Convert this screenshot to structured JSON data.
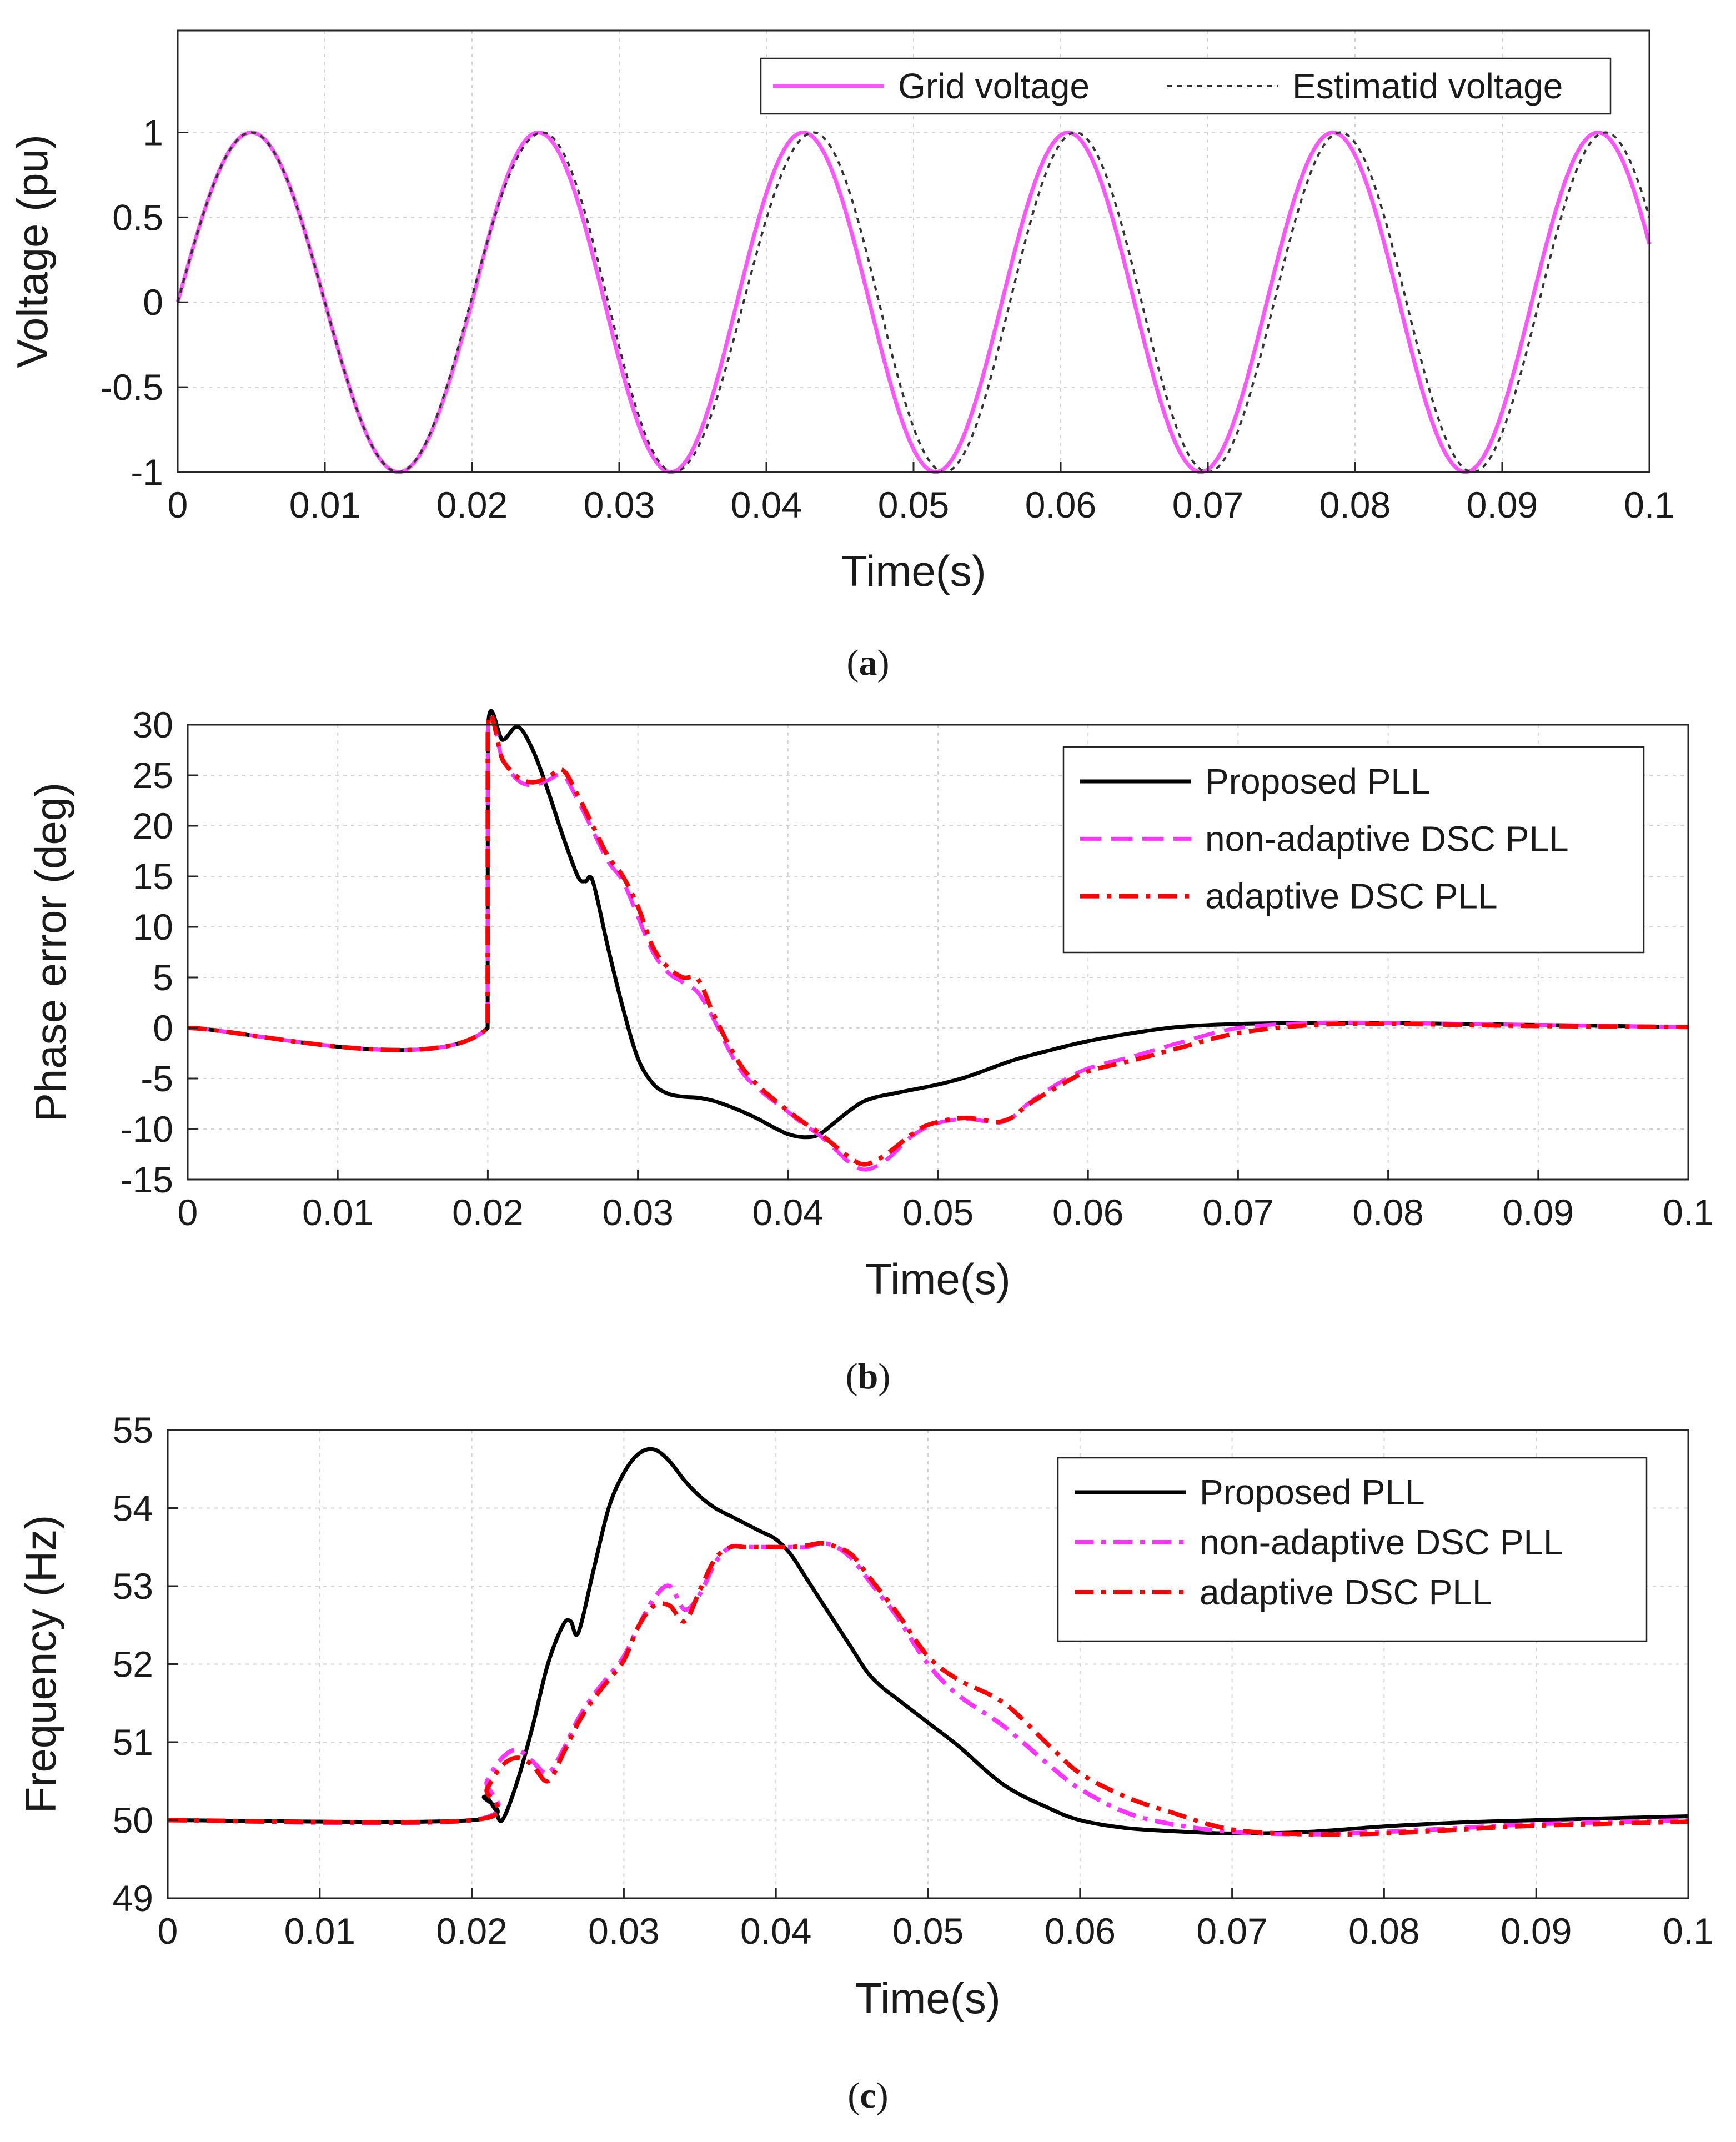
{
  "chart_data": [
    {
      "id": "a",
      "type": "line",
      "caption": "a",
      "xlabel": "Time(s)",
      "ylabel": "Voltage (pu)",
      "xlim": [
        0,
        0.1
      ],
      "ylim": [
        -1,
        1.6
      ],
      "xticks": [
        0,
        0.01,
        0.02,
        0.03,
        0.04,
        0.05,
        0.06,
        0.07,
        0.08,
        0.09,
        0.1
      ],
      "xtick_labels": [
        "0",
        "0.01",
        "0.02",
        "0.03",
        "0.04",
        "0.05",
        "0.06",
        "0.07",
        "0.08",
        "0.09",
        "0.1"
      ],
      "yticks": [
        -1,
        -0.5,
        0,
        0.5,
        1
      ],
      "ytick_labels": [
        "-1",
        "-0.5",
        "0",
        "0.5",
        "1"
      ],
      "grid": true,
      "legend": {
        "position": "top-right",
        "layout": "horizontal"
      },
      "series": [
        {
          "name": "Grid voltage",
          "color": "#ff55ff",
          "dash": "solid",
          "style": "sine",
          "segments": [
            {
              "t0": 0.0,
              "t1": 0.02,
              "period": 0.02,
              "phase_start": 0.0
            },
            {
              "t0": 0.02,
              "t1": 0.1,
              "period": 0.018,
              "phase_start": 0.0
            }
          ]
        },
        {
          "name": "Estimatid voltage",
          "color": "#333333",
          "dash": "dotted",
          "style": "sine",
          "x": [
            0,
            0.005,
            0.015,
            0.0248,
            0.0337,
            0.0432,
            0.0521,
            0.061,
            0.07,
            0.079,
            0.088,
            0.097,
            0.1
          ],
          "y": [
            0,
            1,
            -1,
            1,
            -1,
            1,
            -1,
            1,
            -1,
            1,
            -1,
            1,
            0.59
          ]
        }
      ]
    },
    {
      "id": "b",
      "type": "line",
      "caption": "b",
      "xlabel": "Time(s)",
      "ylabel": "Phase error (deg)",
      "xlim": [
        0,
        0.1
      ],
      "ylim": [
        -15,
        30
      ],
      "xticks": [
        0,
        0.01,
        0.02,
        0.03,
        0.04,
        0.05,
        0.06,
        0.07,
        0.08,
        0.09,
        0.1
      ],
      "xtick_labels": [
        "0",
        "0.01",
        "0.02",
        "0.03",
        "0.04",
        "0.05",
        "0.06",
        "0.07",
        "0.08",
        "0.09",
        "0.1"
      ],
      "yticks": [
        -15,
        -10,
        -5,
        0,
        5,
        10,
        15,
        20,
        25,
        30
      ],
      "ytick_labels": [
        "-15",
        "-10",
        "-5",
        "0",
        "5",
        "10",
        "15",
        "20",
        "25",
        "30"
      ],
      "grid": true,
      "legend": {
        "position": "top-right",
        "layout": "vertical"
      },
      "series": [
        {
          "name": "Proposed PLL",
          "color": "#000000",
          "dash": "solid",
          "x": [
            0,
            0.01999,
            0.02,
            0.021,
            0.022,
            0.023,
            0.024,
            0.025,
            0.026,
            0.0265,
            0.027,
            0.028,
            0.029,
            0.03,
            0.031,
            0.032,
            0.033,
            0.034,
            0.035,
            0.036,
            0.037,
            0.038,
            0.039,
            0.04,
            0.041,
            0.042,
            0.043,
            0.044,
            0.045,
            0.046,
            0.047,
            0.048,
            0.05,
            0.052,
            0.055,
            0.058,
            0.06,
            0.063,
            0.066,
            0.07,
            0.075,
            0.08,
            0.085,
            0.09,
            0.1
          ],
          "y": [
            0,
            0,
            29.5,
            28.5,
            29.8,
            27.5,
            23.5,
            19,
            15,
            14.5,
            14.5,
            8,
            2,
            -3,
            -5.5,
            -6.5,
            -6.8,
            -6.9,
            -7.2,
            -7.7,
            -8.3,
            -9,
            -9.8,
            -10.5,
            -10.8,
            -10.6,
            -9.5,
            -8.3,
            -7.3,
            -6.8,
            -6.5,
            -6.2,
            -5.6,
            -4.8,
            -3.2,
            -2,
            -1.3,
            -0.5,
            0.1,
            0.4,
            0.5,
            0.5,
            0.4,
            0.3,
            0.1
          ]
        },
        {
          "name": "non-adaptive DSC PLL",
          "color": "#ff33ff",
          "dash": "dashed",
          "x": [
            0,
            0.01999,
            0.02,
            0.021,
            0.022,
            0.023,
            0.024,
            0.025,
            0.026,
            0.027,
            0.028,
            0.029,
            0.03,
            0.031,
            0.032,
            0.033,
            0.034,
            0.035,
            0.036,
            0.037,
            0.038,
            0.039,
            0.04,
            0.041,
            0.042,
            0.043,
            0.044,
            0.045,
            0.046,
            0.047,
            0.048,
            0.049,
            0.05,
            0.051,
            0.052,
            0.053,
            0.054,
            0.055,
            0.056,
            0.058,
            0.06,
            0.063,
            0.066,
            0.07,
            0.075,
            0.08,
            0.085,
            0.09,
            0.1
          ],
          "y": [
            0,
            0,
            29.5,
            26.5,
            24.5,
            24,
            24.5,
            25,
            22.5,
            19.5,
            16.5,
            14.5,
            11,
            7.5,
            5.5,
            4.5,
            3.5,
            1,
            -2,
            -4.5,
            -6,
            -7.2,
            -8.3,
            -9.5,
            -10.5,
            -11.8,
            -13.2,
            -14,
            -13.6,
            -12.5,
            -11,
            -10,
            -9.4,
            -9.1,
            -9,
            -9.2,
            -9.4,
            -8.8,
            -7.5,
            -5.5,
            -4,
            -2.8,
            -1.5,
            0,
            0.5,
            0.5,
            0.4,
            0.3,
            0.1
          ]
        },
        {
          "name": "adaptive DSC PLL",
          "color": "#ff0000",
          "dash": "dashdot",
          "x": [
            0,
            0.01999,
            0.02,
            0.021,
            0.022,
            0.023,
            0.024,
            0.025,
            0.026,
            0.027,
            0.028,
            0.029,
            0.03,
            0.031,
            0.032,
            0.033,
            0.034,
            0.035,
            0.036,
            0.037,
            0.038,
            0.039,
            0.04,
            0.041,
            0.042,
            0.043,
            0.044,
            0.045,
            0.046,
            0.047,
            0.048,
            0.049,
            0.05,
            0.051,
            0.052,
            0.053,
            0.054,
            0.055,
            0.056,
            0.058,
            0.06,
            0.063,
            0.066,
            0.07,
            0.075,
            0.08,
            0.085,
            0.09,
            0.1
          ],
          "y": [
            0,
            0,
            29.5,
            26.5,
            24.8,
            24.3,
            24.8,
            25.5,
            23,
            20,
            17,
            15,
            12,
            8,
            6,
            5,
            4.8,
            1.5,
            -1.5,
            -4,
            -5.7,
            -7,
            -8.2,
            -9.3,
            -10.3,
            -11.5,
            -12.7,
            -13.5,
            -13,
            -12,
            -10.8,
            -9.8,
            -9.3,
            -9,
            -8.9,
            -9.1,
            -9.3,
            -8.8,
            -7.6,
            -5.8,
            -4.3,
            -3.2,
            -2,
            -0.5,
            0.3,
            0.4,
            0.3,
            0.2,
            0.1
          ]
        }
      ]
    },
    {
      "id": "c",
      "type": "line",
      "caption": "c",
      "xlabel": "Time(s)",
      "ylabel": "Frequency (Hz)",
      "xlim": [
        0,
        0.1
      ],
      "ylim": [
        49,
        55
      ],
      "xticks": [
        0,
        0.01,
        0.02,
        0.03,
        0.04,
        0.05,
        0.06,
        0.07,
        0.08,
        0.09,
        0.1
      ],
      "xtick_labels": [
        "0",
        "0.01",
        "0.02",
        "0.03",
        "0.04",
        "0.05",
        "0.06",
        "0.07",
        "0.08",
        "0.09",
        "0.1"
      ],
      "yticks": [
        49,
        50,
        51,
        52,
        53,
        54,
        55
      ],
      "ytick_labels": [
        "49",
        "50",
        "51",
        "52",
        "53",
        "54",
        "55"
      ],
      "grid": true,
      "legend": {
        "position": "top-right",
        "layout": "vertical"
      },
      "series": [
        {
          "name": "Proposed PLL",
          "color": "#000000",
          "dash": "solid",
          "x": [
            0,
            0.02,
            0.0208,
            0.0215,
            0.022,
            0.023,
            0.024,
            0.025,
            0.026,
            0.0265,
            0.027,
            0.028,
            0.029,
            0.03,
            0.031,
            0.032,
            0.033,
            0.034,
            0.035,
            0.036,
            0.037,
            0.038,
            0.039,
            0.04,
            0.041,
            0.042,
            0.043,
            0.044,
            0.045,
            0.046,
            0.047,
            0.048,
            0.05,
            0.052,
            0.055,
            0.058,
            0.06,
            0.063,
            0.066,
            0.07,
            0.075,
            0.08,
            0.085,
            0.09,
            0.1
          ],
          "y": [
            50,
            50,
            50.3,
            50.15,
            50,
            50.5,
            51.2,
            52.0,
            52.5,
            52.55,
            52.4,
            53.2,
            54.0,
            54.45,
            54.7,
            54.75,
            54.6,
            54.35,
            54.15,
            54.0,
            53.9,
            53.8,
            53.7,
            53.6,
            53.4,
            53.1,
            52.8,
            52.5,
            52.2,
            51.9,
            51.7,
            51.55,
            51.25,
            50.95,
            50.45,
            50.15,
            50.0,
            49.9,
            49.86,
            49.83,
            49.85,
            49.92,
            49.97,
            50.0,
            50.05
          ]
        },
        {
          "name": "non-adaptive DSC PLL",
          "color": "#ff33ff",
          "dash": "dashdot",
          "x": [
            0,
            0.02,
            0.021,
            0.022,
            0.023,
            0.024,
            0.025,
            0.026,
            0.027,
            0.028,
            0.029,
            0.03,
            0.031,
            0.032,
            0.033,
            0.034,
            0.035,
            0.036,
            0.037,
            0.038,
            0.039,
            0.04,
            0.041,
            0.042,
            0.043,
            0.044,
            0.045,
            0.046,
            0.047,
            0.048,
            0.05,
            0.052,
            0.055,
            0.058,
            0.06,
            0.063,
            0.066,
            0.07,
            0.075,
            0.08,
            0.085,
            0.09,
            0.1
          ],
          "y": [
            50,
            50,
            50.5,
            50.8,
            50.9,
            50.75,
            50.6,
            50.9,
            51.3,
            51.6,
            51.85,
            52.1,
            52.5,
            52.85,
            53.0,
            52.7,
            52.9,
            53.3,
            53.5,
            53.5,
            53.5,
            53.5,
            53.5,
            53.5,
            53.55,
            53.5,
            53.35,
            53.1,
            52.85,
            52.6,
            52.0,
            51.6,
            51.2,
            50.7,
            50.4,
            50.1,
            49.95,
            49.85,
            49.82,
            49.85,
            49.9,
            49.95,
            50.0
          ]
        },
        {
          "name": "adaptive DSC PLL",
          "color": "#ff0000",
          "dash": "dashdot",
          "x": [
            0,
            0.02,
            0.021,
            0.022,
            0.023,
            0.024,
            0.025,
            0.026,
            0.027,
            0.028,
            0.029,
            0.03,
            0.031,
            0.032,
            0.033,
            0.034,
            0.035,
            0.036,
            0.037,
            0.038,
            0.039,
            0.04,
            0.041,
            0.042,
            0.043,
            0.044,
            0.045,
            0.046,
            0.047,
            0.048,
            0.05,
            0.052,
            0.055,
            0.058,
            0.06,
            0.063,
            0.066,
            0.07,
            0.075,
            0.08,
            0.085,
            0.09,
            0.1
          ],
          "y": [
            50,
            50,
            50.4,
            50.7,
            50.8,
            50.7,
            50.5,
            50.85,
            51.25,
            51.55,
            51.8,
            52.05,
            52.5,
            52.75,
            52.75,
            52.55,
            52.95,
            53.35,
            53.5,
            53.5,
            53.5,
            53.5,
            53.5,
            53.52,
            53.55,
            53.5,
            53.4,
            53.15,
            52.9,
            52.65,
            52.1,
            51.8,
            51.5,
            50.95,
            50.6,
            50.3,
            50.1,
            49.88,
            49.82,
            49.83,
            49.88,
            49.93,
            49.98
          ]
        }
      ]
    }
  ]
}
